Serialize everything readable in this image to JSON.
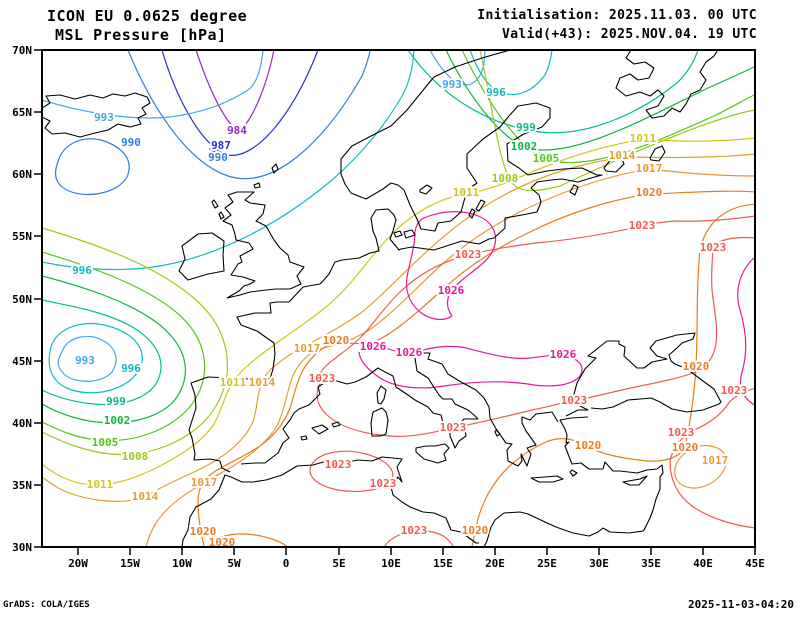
{
  "header": {
    "model_line": "ICON EU 0.0625 degree",
    "param_line": "MSL Pressure [hPa]",
    "init_line": "Initialisation: 2025.11.03. 00 UTC",
    "valid_line": "Valid(+43): 2025.NOV.04. 19 UTC"
  },
  "footer": {
    "left": "GrADS: COLA/IGES",
    "right": "2025-11-03-04:20"
  },
  "axes": {
    "lat": [
      [
        "70N",
        50
      ],
      [
        "65N",
        112
      ],
      [
        "60N",
        174
      ],
      [
        "55N",
        236
      ],
      [
        "50N",
        299
      ],
      [
        "45N",
        361
      ],
      [
        "40N",
        423
      ],
      [
        "35N",
        485
      ],
      [
        "30N",
        547
      ]
    ],
    "lon": [
      [
        "20W",
        78
      ],
      [
        "15W",
        130
      ],
      [
        "10W",
        182
      ],
      [
        "5W",
        234
      ],
      [
        "0",
        286
      ],
      [
        "5E",
        339
      ],
      [
        "10E",
        391
      ],
      [
        "15E",
        443
      ],
      [
        "20E",
        495
      ],
      [
        "25E",
        547
      ],
      [
        "30E",
        599
      ],
      [
        "35E",
        651
      ],
      [
        "40E",
        703
      ],
      [
        "45E",
        755
      ]
    ]
  },
  "palette": {
    "984": "#9b26c8",
    "987": "#2432c8",
    "990": "#2f7fe0",
    "993": "#3fa8ea",
    "996": "#0cbcc4",
    "999": "#00be93",
    "1002": "#0cb83c",
    "1005": "#54c814",
    "1008": "#9eca14",
    "1011": "#d2c616",
    "1014": "#dca428",
    "1017": "#eb9a30",
    "1020": "#e87d1e",
    "1023": "#f25a50",
    "1026": "#e8189e"
  },
  "contour_labels": [
    [
      984,
      237,
      130
    ],
    [
      987,
      221,
      145
    ],
    [
      990,
      218,
      157
    ],
    [
      990,
      131,
      142
    ],
    [
      993,
      104,
      117
    ],
    [
      993,
      85,
      360
    ],
    [
      993,
      452,
      84
    ],
    [
      996,
      82,
      270
    ],
    [
      996,
      131,
      368
    ],
    [
      996,
      496,
      92
    ],
    [
      999,
      116,
      401
    ],
    [
      999,
      526,
      127
    ],
    [
      1002,
      117,
      420
    ],
    [
      1002,
      524,
      146
    ],
    [
      1005,
      105,
      442
    ],
    [
      1005,
      546,
      158
    ],
    [
      1008,
      135,
      456
    ],
    [
      1008,
      505,
      178
    ],
    [
      1011,
      100,
      484
    ],
    [
      1011,
      233,
      382
    ],
    [
      1011,
      643,
      138
    ],
    [
      1011,
      466,
      192
    ],
    [
      1014,
      145,
      496
    ],
    [
      1014,
      262,
      382
    ],
    [
      1014,
      622,
      155
    ],
    [
      1017,
      307,
      348
    ],
    [
      1017,
      204,
      482
    ],
    [
      1017,
      649,
      168
    ],
    [
      1017,
      715,
      460
    ],
    [
      1020,
      336,
      340
    ],
    [
      1020,
      649,
      192
    ],
    [
      1020,
      696,
      366
    ],
    [
      1020,
      588,
      445
    ],
    [
      1020,
      685,
      447
    ],
    [
      1020,
      203,
      531
    ],
    [
      1020,
      222,
      542
    ],
    [
      1020,
      475,
      530
    ],
    [
      1023,
      468,
      254
    ],
    [
      1023,
      642,
      225
    ],
    [
      1023,
      713,
      247
    ],
    [
      1023,
      322,
      378
    ],
    [
      1023,
      453,
      427
    ],
    [
      1023,
      574,
      400
    ],
    [
      1023,
      734,
      390
    ],
    [
      1023,
      681,
      432
    ],
    [
      1023,
      338,
      464
    ],
    [
      1023,
      383,
      483
    ],
    [
      1023,
      414,
      530
    ],
    [
      1026,
      373,
      346
    ],
    [
      1026,
      409,
      352
    ],
    [
      1026,
      451,
      290
    ],
    [
      1026,
      563,
      354
    ]
  ],
  "map": {
    "bg": "#ffffff",
    "frame_color": "#000000",
    "coast_color": "#000000"
  },
  "chart_data": {
    "type": "contour_map",
    "variable": "MSL Pressure",
    "units": "hPa",
    "model": "ICON EU 0.0625 degree",
    "initialisation": "2025.11.03. 00 UTC",
    "valid": "2025.NOV.04. 19 UTC",
    "lead_hours": 43,
    "domain": {
      "lon_range": [
        "20W",
        "45E"
      ],
      "lat_range": [
        "30N",
        "70N"
      ]
    },
    "contour_interval_hpa": 3,
    "levels": [
      984,
      987,
      990,
      993,
      996,
      999,
      1002,
      1005,
      1008,
      1011,
      1014,
      1017,
      1020,
      1023,
      1026
    ],
    "features": [
      {
        "kind": "low",
        "where": "North Atlantic trough near Iceland",
        "min_level_hpa": 984
      },
      {
        "kind": "low",
        "where": "Atlantic west of Iberia",
        "min_level_hpa": 993
      },
      {
        "kind": "high",
        "where": "central and southeastern Europe",
        "max_level_hpa": 1026
      },
      {
        "kind": "high",
        "where": "east of map edge (45E)",
        "max_level_hpa": 1026
      }
    ]
  }
}
